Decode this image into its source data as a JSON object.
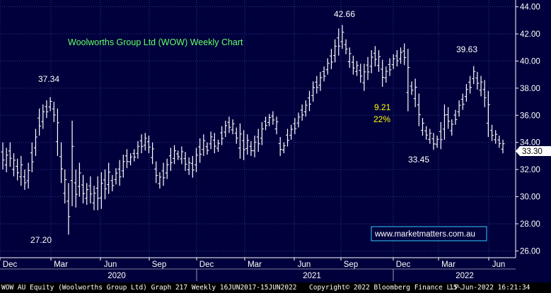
{
  "chart_data": {
    "type": "bar",
    "bar_style": "OHLC weekly",
    "title": "Woolworths Group Ltd (WOW) Weekly Chart",
    "ylim": [
      25.5,
      44.5
    ],
    "y_ticks": [
      "26.00",
      "28.00",
      "30.00",
      "32.00",
      "34.00",
      "36.00",
      "38.00",
      "40.00",
      "42.00",
      "44.00"
    ],
    "y_axis_side": "right",
    "grid": true,
    "x_month_labels": [
      "Dec",
      "Mar",
      "Jun",
      "Sep",
      "Dec",
      "Mar",
      "Jun",
      "Sep",
      "Dec",
      "Mar",
      "Jun"
    ],
    "x_year_labels": [
      "2020",
      "2021",
      "2022"
    ],
    "last_price": "33.30",
    "weeks": [
      {
        "h": 34.0,
        "l": 32.0
      },
      {
        "h": 33.6,
        "l": 31.8
      },
      {
        "h": 34.0,
        "l": 32.2
      },
      {
        "h": 33.2,
        "l": 31.5
      },
      {
        "h": 32.8,
        "l": 31.2
      },
      {
        "h": 33.0,
        "l": 30.8
      },
      {
        "h": 32.0,
        "l": 30.5
      },
      {
        "h": 32.5,
        "l": 30.6
      },
      {
        "h": 34.0,
        "l": 31.8
      },
      {
        "h": 35.0,
        "l": 33.0
      },
      {
        "h": 36.5,
        "l": 34.5
      },
      {
        "h": 36.8,
        "l": 35.0
      },
      {
        "h": 37.1,
        "l": 35.8
      },
      {
        "h": 37.34,
        "l": 36.3
      },
      {
        "h": 37.0,
        "l": 35.5
      },
      {
        "h": 36.5,
        "l": 33.0
      },
      {
        "h": 34.0,
        "l": 31.0
      },
      {
        "h": 32.0,
        "l": 29.5
      },
      {
        "h": 31.0,
        "l": 27.2
      },
      {
        "h": 35.6,
        "l": 29.3
      },
      {
        "h": 32.0,
        "l": 29.2
      },
      {
        "h": 32.5,
        "l": 30.0
      },
      {
        "h": 31.6,
        "l": 29.5
      },
      {
        "h": 31.0,
        "l": 29.4
      },
      {
        "h": 31.5,
        "l": 29.5
      },
      {
        "h": 30.8,
        "l": 29.0
      },
      {
        "h": 31.5,
        "l": 29.0
      },
      {
        "h": 31.8,
        "l": 29.1
      },
      {
        "h": 32.0,
        "l": 29.8
      },
      {
        "h": 32.5,
        "l": 30.2
      },
      {
        "h": 31.6,
        "l": 30.4
      },
      {
        "h": 32.1,
        "l": 30.9
      },
      {
        "h": 32.7,
        "l": 30.8
      },
      {
        "h": 33.1,
        "l": 31.4
      },
      {
        "h": 33.5,
        "l": 32.1
      },
      {
        "h": 33.2,
        "l": 32.3
      },
      {
        "h": 33.5,
        "l": 32.6
      },
      {
        "h": 34.1,
        "l": 32.8
      },
      {
        "h": 34.6,
        "l": 33.2
      },
      {
        "h": 34.7,
        "l": 33.4
      },
      {
        "h": 34.5,
        "l": 33.2
      },
      {
        "h": 34.0,
        "l": 32.4
      },
      {
        "h": 32.6,
        "l": 31.0
      },
      {
        "h": 31.8,
        "l": 30.6
      },
      {
        "h": 32.5,
        "l": 30.8
      },
      {
        "h": 32.8,
        "l": 31.3
      },
      {
        "h": 33.6,
        "l": 31.9
      },
      {
        "h": 33.8,
        "l": 32.4
      },
      {
        "h": 33.4,
        "l": 32.7
      },
      {
        "h": 33.7,
        "l": 32.4
      },
      {
        "h": 33.3,
        "l": 31.9
      },
      {
        "h": 32.9,
        "l": 31.6
      },
      {
        "h": 33.0,
        "l": 31.4
      },
      {
        "h": 33.6,
        "l": 31.8
      },
      {
        "h": 34.3,
        "l": 32.5
      },
      {
        "h": 34.6,
        "l": 33.0
      },
      {
        "h": 34.0,
        "l": 33.1
      },
      {
        "h": 34.8,
        "l": 33.5
      },
      {
        "h": 34.7,
        "l": 33.2
      },
      {
        "h": 34.2,
        "l": 33.3
      },
      {
        "h": 35.2,
        "l": 33.8
      },
      {
        "h": 35.6,
        "l": 34.4
      },
      {
        "h": 35.9,
        "l": 34.7
      },
      {
        "h": 35.7,
        "l": 34.6
      },
      {
        "h": 35.1,
        "l": 33.9
      },
      {
        "h": 35.4,
        "l": 32.8
      },
      {
        "h": 34.9,
        "l": 32.7
      },
      {
        "h": 34.6,
        "l": 33.1
      },
      {
        "h": 34.1,
        "l": 33.0
      },
      {
        "h": 34.5,
        "l": 32.9
      },
      {
        "h": 35.0,
        "l": 33.3
      },
      {
        "h": 35.5,
        "l": 33.8
      },
      {
        "h": 35.9,
        "l": 34.9
      },
      {
        "h": 36.1,
        "l": 35.2
      },
      {
        "h": 36.3,
        "l": 35.3
      },
      {
        "h": 35.9,
        "l": 34.6
      },
      {
        "h": 34.4,
        "l": 33.0
      },
      {
        "h": 34.0,
        "l": 33.2
      },
      {
        "h": 35.0,
        "l": 33.7
      },
      {
        "h": 35.3,
        "l": 34.2
      },
      {
        "h": 35.8,
        "l": 34.6
      },
      {
        "h": 36.2,
        "l": 35.1
      },
      {
        "h": 36.8,
        "l": 35.6
      },
      {
        "h": 37.1,
        "l": 35.9
      },
      {
        "h": 37.8,
        "l": 36.3
      },
      {
        "h": 38.5,
        "l": 37.0
      },
      {
        "h": 38.9,
        "l": 37.6
      },
      {
        "h": 39.2,
        "l": 37.8
      },
      {
        "h": 39.6,
        "l": 38.5
      },
      {
        "h": 40.2,
        "l": 39.0
      },
      {
        "h": 40.9,
        "l": 39.4
      },
      {
        "h": 41.6,
        "l": 39.9
      },
      {
        "h": 42.4,
        "l": 40.4
      },
      {
        "h": 42.66,
        "l": 40.9
      },
      {
        "h": 41.6,
        "l": 40.5
      },
      {
        "h": 41.0,
        "l": 39.5
      },
      {
        "h": 40.4,
        "l": 39.0
      },
      {
        "h": 40.0,
        "l": 38.9
      },
      {
        "h": 39.8,
        "l": 38.4
      },
      {
        "h": 39.8,
        "l": 37.8
      },
      {
        "h": 40.3,
        "l": 38.6
      },
      {
        "h": 40.8,
        "l": 39.1
      },
      {
        "h": 41.1,
        "l": 39.6
      },
      {
        "h": 40.8,
        "l": 39.2
      },
      {
        "h": 40.1,
        "l": 38.1
      },
      {
        "h": 39.6,
        "l": 38.4
      },
      {
        "h": 40.2,
        "l": 38.9
      },
      {
        "h": 40.5,
        "l": 39.4
      },
      {
        "h": 40.8,
        "l": 39.6
      },
      {
        "h": 41.0,
        "l": 39.8
      },
      {
        "h": 41.3,
        "l": 39.7
      },
      {
        "h": 40.9,
        "l": 36.3
      },
      {
        "h": 38.5,
        "l": 37.5
      },
      {
        "h": 38.7,
        "l": 36.6
      },
      {
        "h": 37.6,
        "l": 35.2
      },
      {
        "h": 35.8,
        "l": 34.5
      },
      {
        "h": 35.2,
        "l": 34.2
      },
      {
        "h": 35.0,
        "l": 33.9
      },
      {
        "h": 34.7,
        "l": 33.45
      },
      {
        "h": 34.5,
        "l": 33.6
      },
      {
        "h": 35.5,
        "l": 33.5
      },
      {
        "h": 36.8,
        "l": 34.2
      },
      {
        "h": 36.6,
        "l": 35.0
      },
      {
        "h": 35.7,
        "l": 34.5
      },
      {
        "h": 36.4,
        "l": 35.3
      },
      {
        "h": 37.1,
        "l": 35.9
      },
      {
        "h": 37.6,
        "l": 36.4
      },
      {
        "h": 38.3,
        "l": 37.0
      },
      {
        "h": 38.9,
        "l": 37.6
      },
      {
        "h": 39.63,
        "l": 38.3
      },
      {
        "h": 39.2,
        "l": 37.9
      },
      {
        "h": 38.9,
        "l": 37.4
      },
      {
        "h": 38.6,
        "l": 36.6
      },
      {
        "h": 37.8,
        "l": 34.4
      },
      {
        "h": 35.3,
        "l": 34.1
      },
      {
        "h": 34.9,
        "l": 33.9
      },
      {
        "h": 34.5,
        "l": 33.6
      },
      {
        "h": 34.2,
        "l": 33.2
      }
    ],
    "annotations": [
      {
        "text": "37.34",
        "color": "#ffffff"
      },
      {
        "text": "27.20",
        "color": "#ffffff"
      },
      {
        "text": "42.66",
        "color": "#ffffff"
      },
      {
        "text": "39.63",
        "color": "#ffffff"
      },
      {
        "text": "33.45",
        "color": "#ffffff"
      },
      {
        "text": "9.21",
        "color": "#ffff00"
      },
      {
        "text": "22%",
        "color": "#ffff00"
      }
    ],
    "watermark": "www.marketmatters.com.au"
  },
  "colors": {
    "background": "#00003c",
    "grid": "#34348c",
    "bars": "#ffffff",
    "title": "#66ff66",
    "highlight": "#ffff00",
    "last_price_bg": "#ffffff",
    "watermark_border": "#33ccff",
    "watermark_text": "#ffffff"
  },
  "footer": {
    "left": "WOW AU Equity (Woolworths Group Ltd) Graph 217  Weekly 16JUN2017-15JUN2022",
    "middle": "Copyright© 2022 Bloomberg Finance L.P.",
    "right": "15-Jun-2022 16:21:34"
  }
}
